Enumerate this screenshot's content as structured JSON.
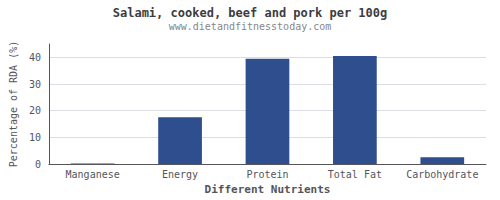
{
  "chart_data": {
    "type": "bar",
    "title": "Salami, cooked, beef and pork per 100g",
    "subtitle": "www.dietandfitnesstoday.com",
    "xlabel": "Different Nutrients",
    "ylabel": "Percentage of RDA (%)",
    "categories": [
      "Manganese",
      "Energy",
      "Protein",
      "Total Fat",
      "Carbohydrate"
    ],
    "values": [
      0.2,
      17.5,
      39.5,
      40.5,
      2.5
    ],
    "color": "#2e4e8e",
    "ylim": [
      0,
      45
    ],
    "yticks": [
      0,
      10,
      20,
      30,
      40
    ],
    "grid": true
  }
}
